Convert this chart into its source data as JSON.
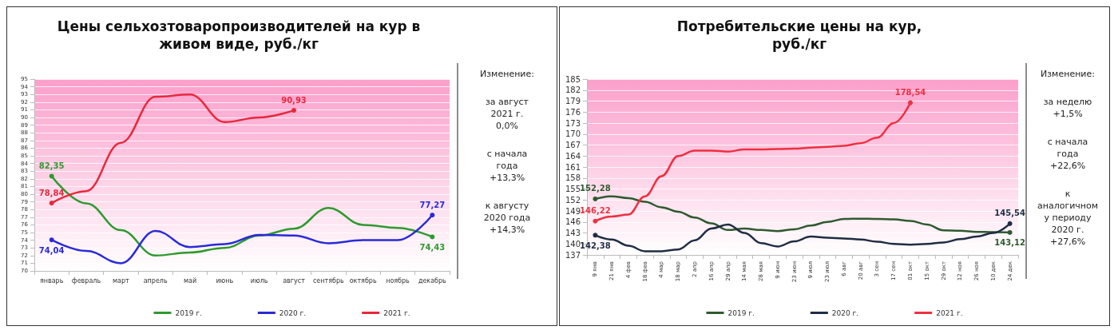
{
  "chart_data": [
    {
      "type": "line",
      "title": "Цены сельхозтоваропроизводителей на кур в\nживом виде, руб./кг",
      "categories": [
        "январь",
        "февраль",
        "март",
        "апрель",
        "май",
        "июнь",
        "июль",
        "август",
        "сентябрь",
        "октябрь",
        "ноябрь",
        "декабрь"
      ],
      "series": [
        {
          "name": "2019 г.",
          "color": "#2e9a2e",
          "values": [
            82.35,
            78.8,
            75.3,
            72.0,
            72.4,
            73.0,
            74.6,
            75.5,
            78.2,
            76.0,
            75.6,
            74.43
          ],
          "value_labels": [
            "82,35",
            null,
            null,
            null,
            null,
            null,
            null,
            null,
            null,
            null,
            null,
            "74,43"
          ]
        },
        {
          "name": "2020 г.",
          "color": "#2a2ad8",
          "values": [
            74.04,
            72.6,
            71.0,
            75.2,
            73.1,
            73.5,
            74.7,
            74.6,
            73.6,
            74.0,
            74.0,
            77.27
          ],
          "value_labels": [
            "74,04",
            null,
            null,
            null,
            null,
            null,
            null,
            null,
            null,
            null,
            null,
            "77,27"
          ]
        },
        {
          "name": "2021 г.",
          "color": "#e8283c",
          "values": [
            78.84,
            80.4,
            86.7,
            92.7,
            93.0,
            89.4,
            90.0,
            90.93,
            null,
            null,
            null,
            null
          ],
          "value_labels": [
            "78,84",
            null,
            null,
            null,
            null,
            null,
            null,
            "90,93",
            null,
            null,
            null,
            null
          ]
        }
      ],
      "ylim": [
        70,
        95
      ],
      "yticks": [
        70,
        71,
        72,
        73,
        74,
        75,
        76,
        77,
        78,
        79,
        80,
        81,
        82,
        83,
        84,
        85,
        86,
        87,
        88,
        89,
        90,
        91,
        92,
        93,
        94,
        95
      ],
      "grid": "y",
      "legend": "bottom",
      "annotations": [
        "Изменение:",
        "за август\n2021 г.\n0,0%",
        "с начала\nгода\n+13,3%",
        "к августу\n2020 года\n+14,3%"
      ]
    },
    {
      "type": "line",
      "title": "Потребительские цены на кур,\nруб./кг",
      "categories": [
        "9 янв",
        "21 янв",
        "4 фев",
        "18 фев",
        "4 мар",
        "18 мар",
        "2 апр",
        "16 апр",
        "29 апр",
        "14 мая",
        "28 мая",
        "9 июн",
        "23 июн",
        "9 июл",
        "23 июл",
        "6 авг",
        "20 авг",
        "3 сен",
        "17 сен",
        "01 окт",
        "15 окт",
        "29 окт",
        "12 ноя",
        "26 ноя",
        "10 дек",
        "24 дек"
      ],
      "series": [
        {
          "name": "2019 г.",
          "color": "#2f5a2f",
          "values": [
            152.28,
            153.0,
            152.5,
            151.5,
            150.0,
            148.8,
            147.2,
            145.6,
            143.8,
            144.2,
            143.8,
            143.5,
            144.0,
            145.0,
            146.0,
            146.8,
            146.9,
            146.8,
            146.7,
            146.3,
            145.3,
            143.7,
            143.6,
            143.3,
            143.2,
            143.12
          ],
          "value_labels": [
            "152,28",
            null,
            null,
            null,
            null,
            null,
            null,
            null,
            null,
            null,
            null,
            null,
            null,
            null,
            null,
            null,
            null,
            null,
            null,
            null,
            null,
            null,
            null,
            null,
            null,
            "143,12"
          ]
        },
        {
          "name": "2020 г.",
          "color": "#1f2d44",
          "values": [
            142.38,
            141.2,
            139.5,
            138.0,
            138.0,
            138.5,
            141.0,
            144.2,
            145.3,
            143.0,
            140.2,
            139.3,
            140.7,
            142.0,
            141.7,
            141.5,
            141.2,
            140.6,
            140.0,
            139.8,
            140.0,
            140.4,
            141.3,
            142.0,
            143.0,
            145.54
          ],
          "value_labels": [
            "142,38",
            null,
            null,
            null,
            null,
            null,
            null,
            null,
            null,
            null,
            null,
            null,
            null,
            null,
            null,
            null,
            null,
            null,
            null,
            null,
            null,
            null,
            null,
            null,
            null,
            "145,54"
          ]
        },
        {
          "name": "2021 г.",
          "color": "#ee3040",
          "values": [
            146.22,
            147.5,
            148.0,
            153.0,
            158.5,
            164.0,
            165.5,
            165.5,
            165.2,
            165.8,
            165.8,
            165.9,
            166.0,
            166.3,
            166.5,
            166.8,
            167.5,
            169.0,
            173.0,
            178.54,
            null,
            null,
            null,
            null,
            null,
            null
          ],
          "value_labels": [
            "146,22",
            null,
            null,
            null,
            null,
            null,
            null,
            null,
            null,
            null,
            null,
            null,
            null,
            null,
            null,
            null,
            null,
            null,
            null,
            "178,54",
            null,
            null,
            null,
            null,
            null,
            null
          ]
        }
      ],
      "ylim": [
        137,
        185
      ],
      "yticks": [
        137,
        140,
        143,
        146,
        149,
        152,
        155,
        158,
        161,
        164,
        167,
        170,
        173,
        176,
        179,
        182,
        185
      ],
      "grid": "y",
      "legend": "bottom",
      "annotations": [
        "Изменение:",
        "за неделю\n+1,5%",
        "с начала\nгода\n+22,6%",
        "к\nаналогичном\nу периоду\n2020 г.\n+27,6%"
      ]
    }
  ]
}
